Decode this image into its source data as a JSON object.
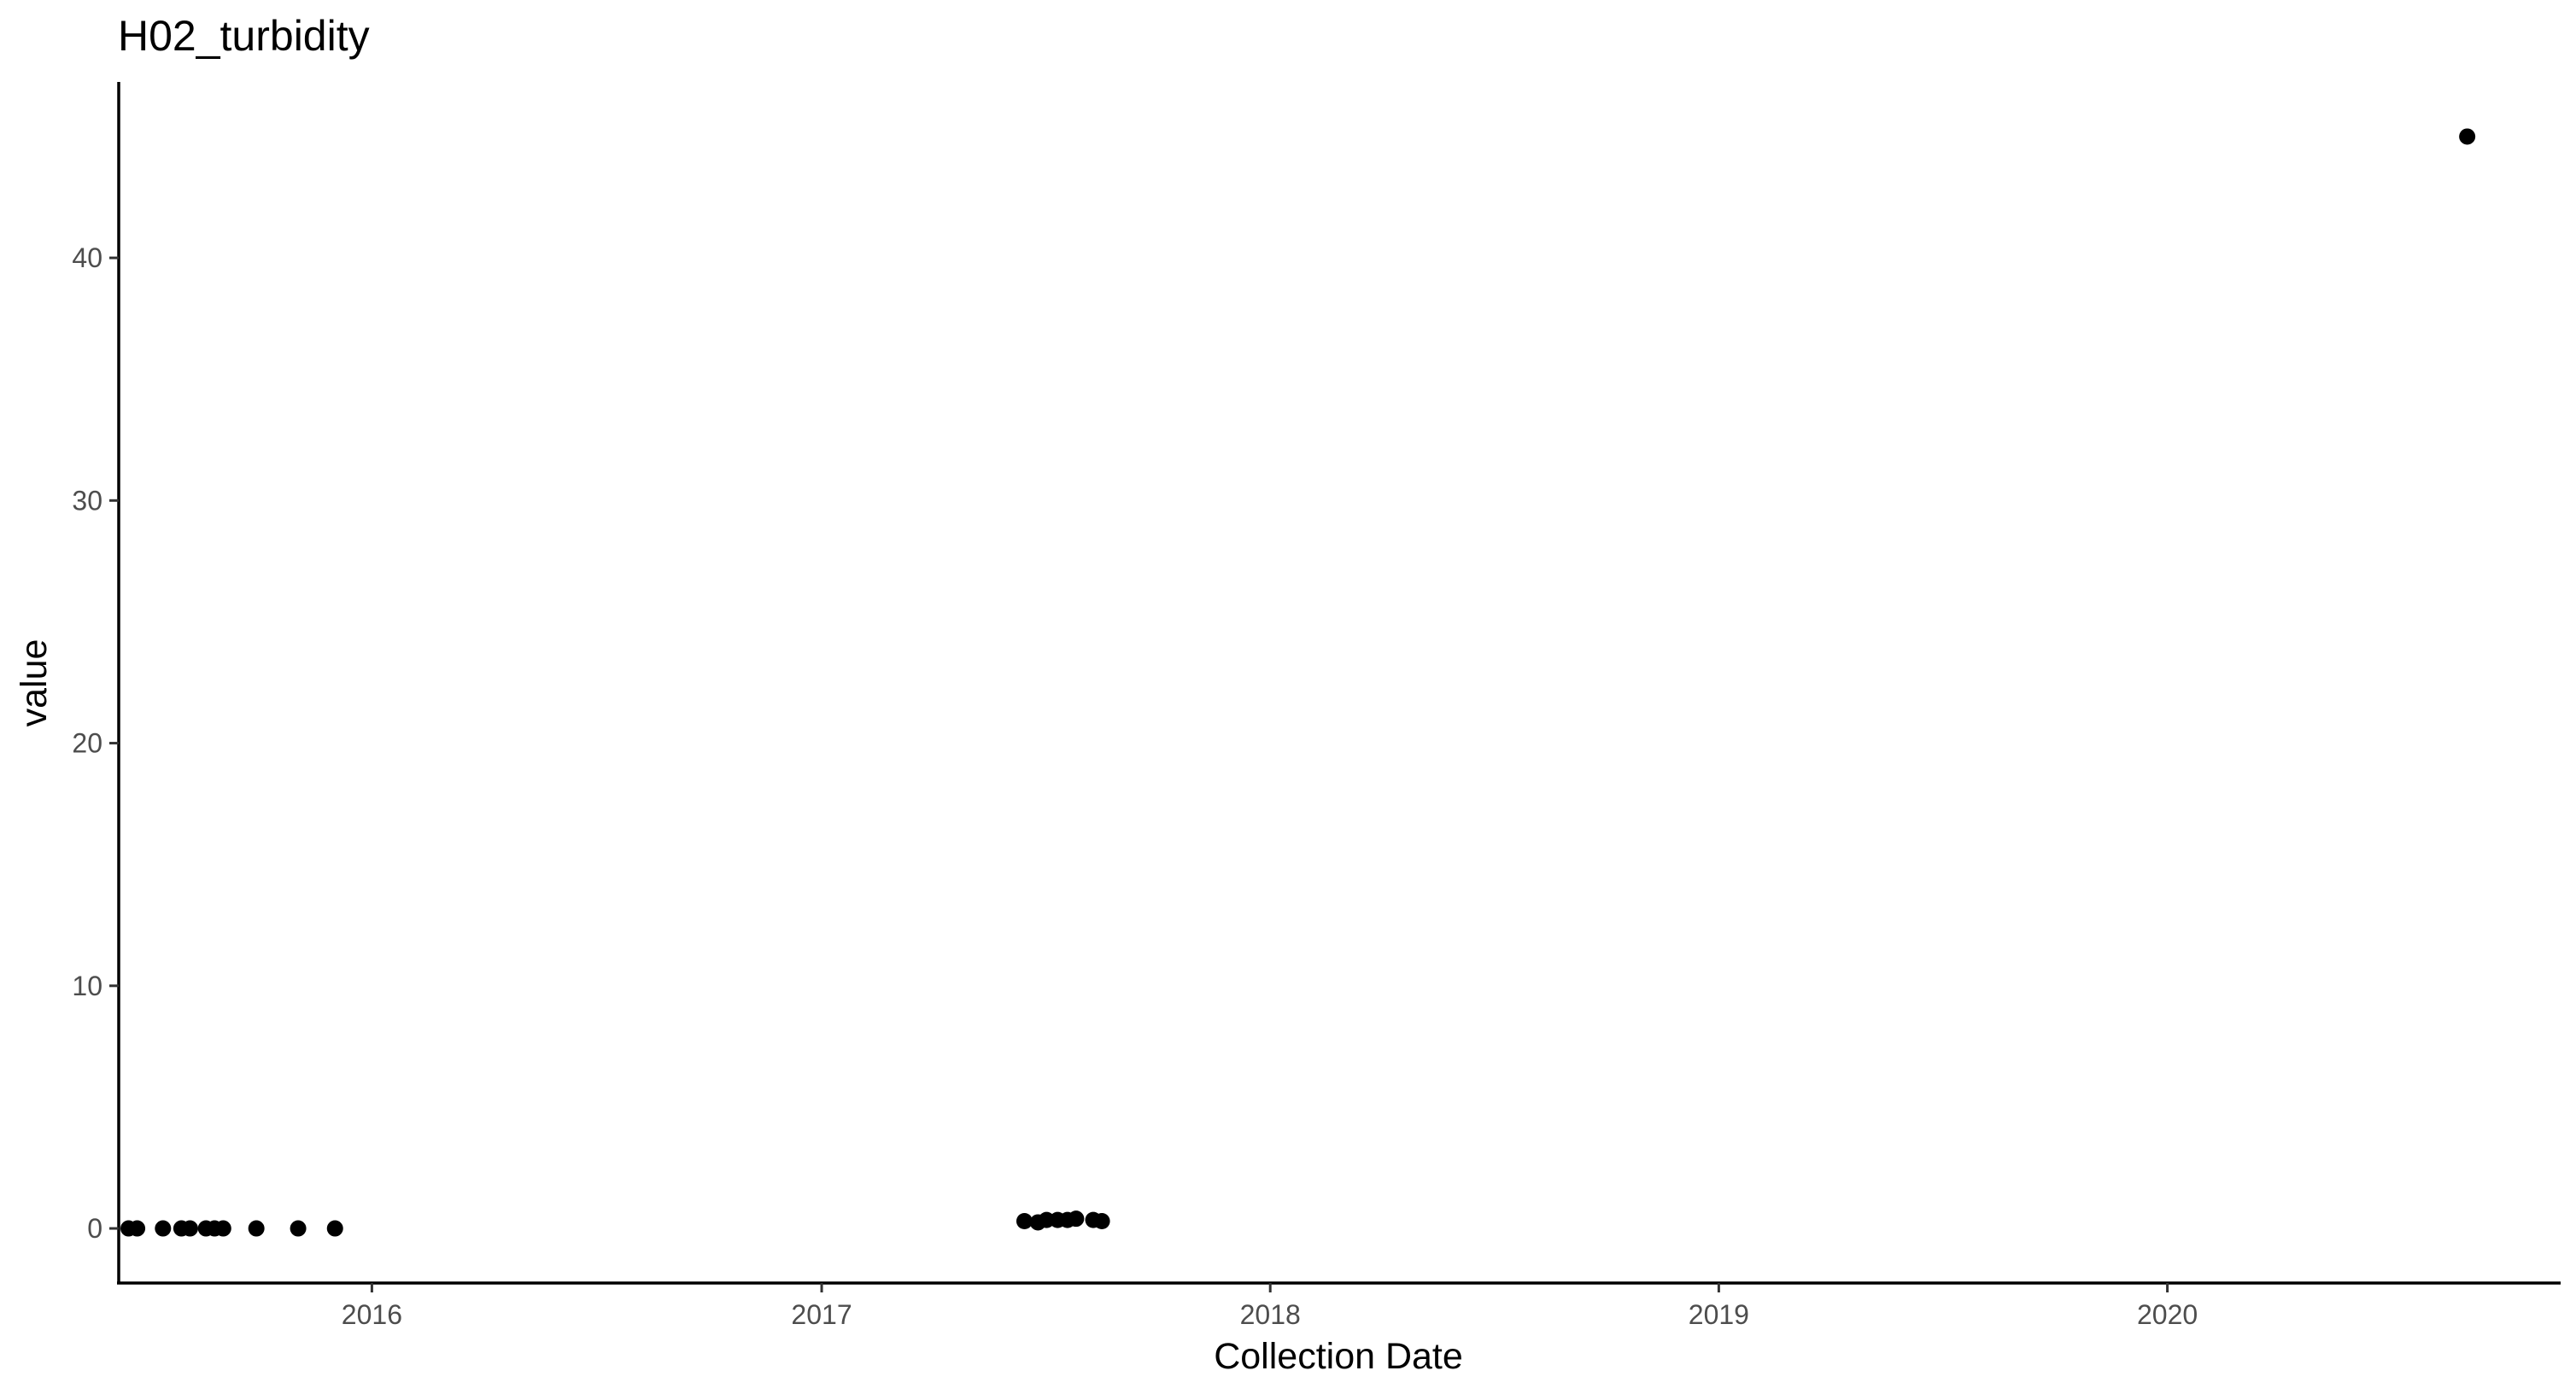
{
  "chart_data": {
    "type": "scatter",
    "title": "H02_turbidity",
    "xlabel": "Collection Date",
    "ylabel": "value",
    "x_scale": "date",
    "xlim": [
      "2015-06-09",
      "2020-11-16"
    ],
    "ylim": [
      -2.25,
      47.25
    ],
    "x_ticks": [
      {
        "label": "2016",
        "value": "2016-01-01"
      },
      {
        "label": "2017",
        "value": "2017-01-01"
      },
      {
        "label": "2018",
        "value": "2018-01-01"
      },
      {
        "label": "2019",
        "value": "2019-01-01"
      },
      {
        "label": "2020",
        "value": "2020-01-01"
      }
    ],
    "y_ticks": [
      {
        "label": "0",
        "value": 0
      },
      {
        "label": "10",
        "value": 10
      },
      {
        "label": "20",
        "value": 20
      },
      {
        "label": "30",
        "value": 30
      },
      {
        "label": "40",
        "value": 40
      }
    ],
    "grid": false,
    "legend": "none",
    "point_color": "#000000",
    "points": [
      {
        "x": "2015-06-17",
        "y": 0
      },
      {
        "x": "2015-06-24",
        "y": 0
      },
      {
        "x": "2015-07-15",
        "y": 0
      },
      {
        "x": "2015-07-30",
        "y": 0
      },
      {
        "x": "2015-08-06",
        "y": 0
      },
      {
        "x": "2015-08-19",
        "y": 0
      },
      {
        "x": "2015-08-26",
        "y": 0
      },
      {
        "x": "2015-09-02",
        "y": 0
      },
      {
        "x": "2015-09-29",
        "y": 0
      },
      {
        "x": "2015-11-02",
        "y": 0
      },
      {
        "x": "2015-12-02",
        "y": 0
      },
      {
        "x": "2017-06-15",
        "y": 0.3
      },
      {
        "x": "2017-06-26",
        "y": 0.25
      },
      {
        "x": "2017-07-03",
        "y": 0.35
      },
      {
        "x": "2017-07-12",
        "y": 0.35
      },
      {
        "x": "2017-07-20",
        "y": 0.35
      },
      {
        "x": "2017-07-27",
        "y": 0.4
      },
      {
        "x": "2017-08-10",
        "y": 0.35
      },
      {
        "x": "2017-08-17",
        "y": 0.3
      },
      {
        "x": "2020-09-01",
        "y": 45
      }
    ]
  }
}
